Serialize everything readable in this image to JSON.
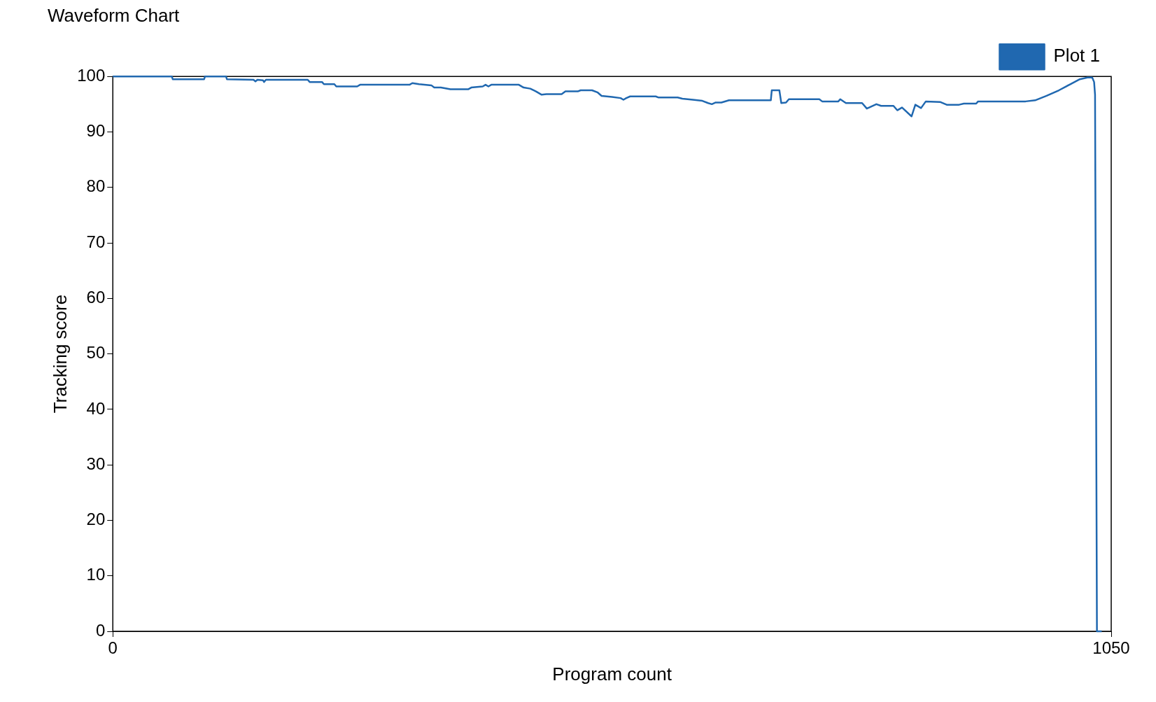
{
  "chart_data": {
    "type": "line",
    "title": "Waveform Chart",
    "xlabel": "Program count",
    "ylabel": "Tracking score",
    "xlim": [
      0,
      1050
    ],
    "xticks": [
      0,
      1050
    ],
    "ylim": [
      0,
      100
    ],
    "yticks": [
      0,
      10,
      20,
      30,
      40,
      50,
      60,
      70,
      80,
      90,
      100
    ],
    "grid": false,
    "legend": "top right",
    "marker": "none",
    "line_style": "solid",
    "series": [
      {
        "name": "Plot 1",
        "color": "#2068b0",
        "x": [
          0,
          62,
          63,
          96,
          97,
          119,
          120,
          148,
          150,
          152,
          158,
          159,
          161,
          205,
          207,
          220,
          222,
          233,
          235,
          257,
          260,
          312,
          315,
          322,
          335,
          338,
          345,
          355,
          374,
          377,
          389,
          392,
          395,
          398,
          427,
          432,
          439,
          445,
          451,
          456,
          472,
          476,
          489,
          492,
          504,
          510,
          514,
          525,
          534,
          537,
          540,
          544,
          571,
          574,
          594,
          599,
          610,
          620,
          626,
          630,
          634,
          640,
          648,
          692,
          693,
          701,
          703,
          708,
          711,
          743,
          746,
          763,
          765,
          771,
          788,
          793,
          803,
          808,
          821,
          825,
          830,
          840,
          844,
          850,
          855,
          870,
          877,
          890,
          895,
          908,
          910,
          960,
          970,
          982,
          995,
          1007,
          1017,
          1025,
          1030,
          1032,
          1033,
          1035,
          1040
        ],
        "values": [
          100,
          100,
          99.5,
          99.5,
          100,
          100,
          99.5,
          99.4,
          99.1,
          99.4,
          99.3,
          99.0,
          99.4,
          99.4,
          99.0,
          99.0,
          98.6,
          98.6,
          98.2,
          98.2,
          98.5,
          98.5,
          98.8,
          98.6,
          98.4,
          98.0,
          98.0,
          97.7,
          97.7,
          98.0,
          98.2,
          98.5,
          98.2,
          98.5,
          98.5,
          98.0,
          97.8,
          97.3,
          96.7,
          96.8,
          96.8,
          97.3,
          97.3,
          97.5,
          97.5,
          97.1,
          96.5,
          96.3,
          96.1,
          95.8,
          96.1,
          96.4,
          96.4,
          96.2,
          96.2,
          96.0,
          95.8,
          95.6,
          95.2,
          95.0,
          95.3,
          95.3,
          95.7,
          95.7,
          97.5,
          97.5,
          95.2,
          95.3,
          95.9,
          95.9,
          95.5,
          95.5,
          95.9,
          95.2,
          95.2,
          94.2,
          95.0,
          94.7,
          94.7,
          93.9,
          94.4,
          92.8,
          94.9,
          94.3,
          95.5,
          95.4,
          94.9,
          94.9,
          95.1,
          95.1,
          95.5,
          95.5,
          95.7,
          96.5,
          97.5,
          98.6,
          99.5,
          99.8,
          99.8,
          99.0,
          96.7,
          0,
          0
        ]
      }
    ]
  }
}
